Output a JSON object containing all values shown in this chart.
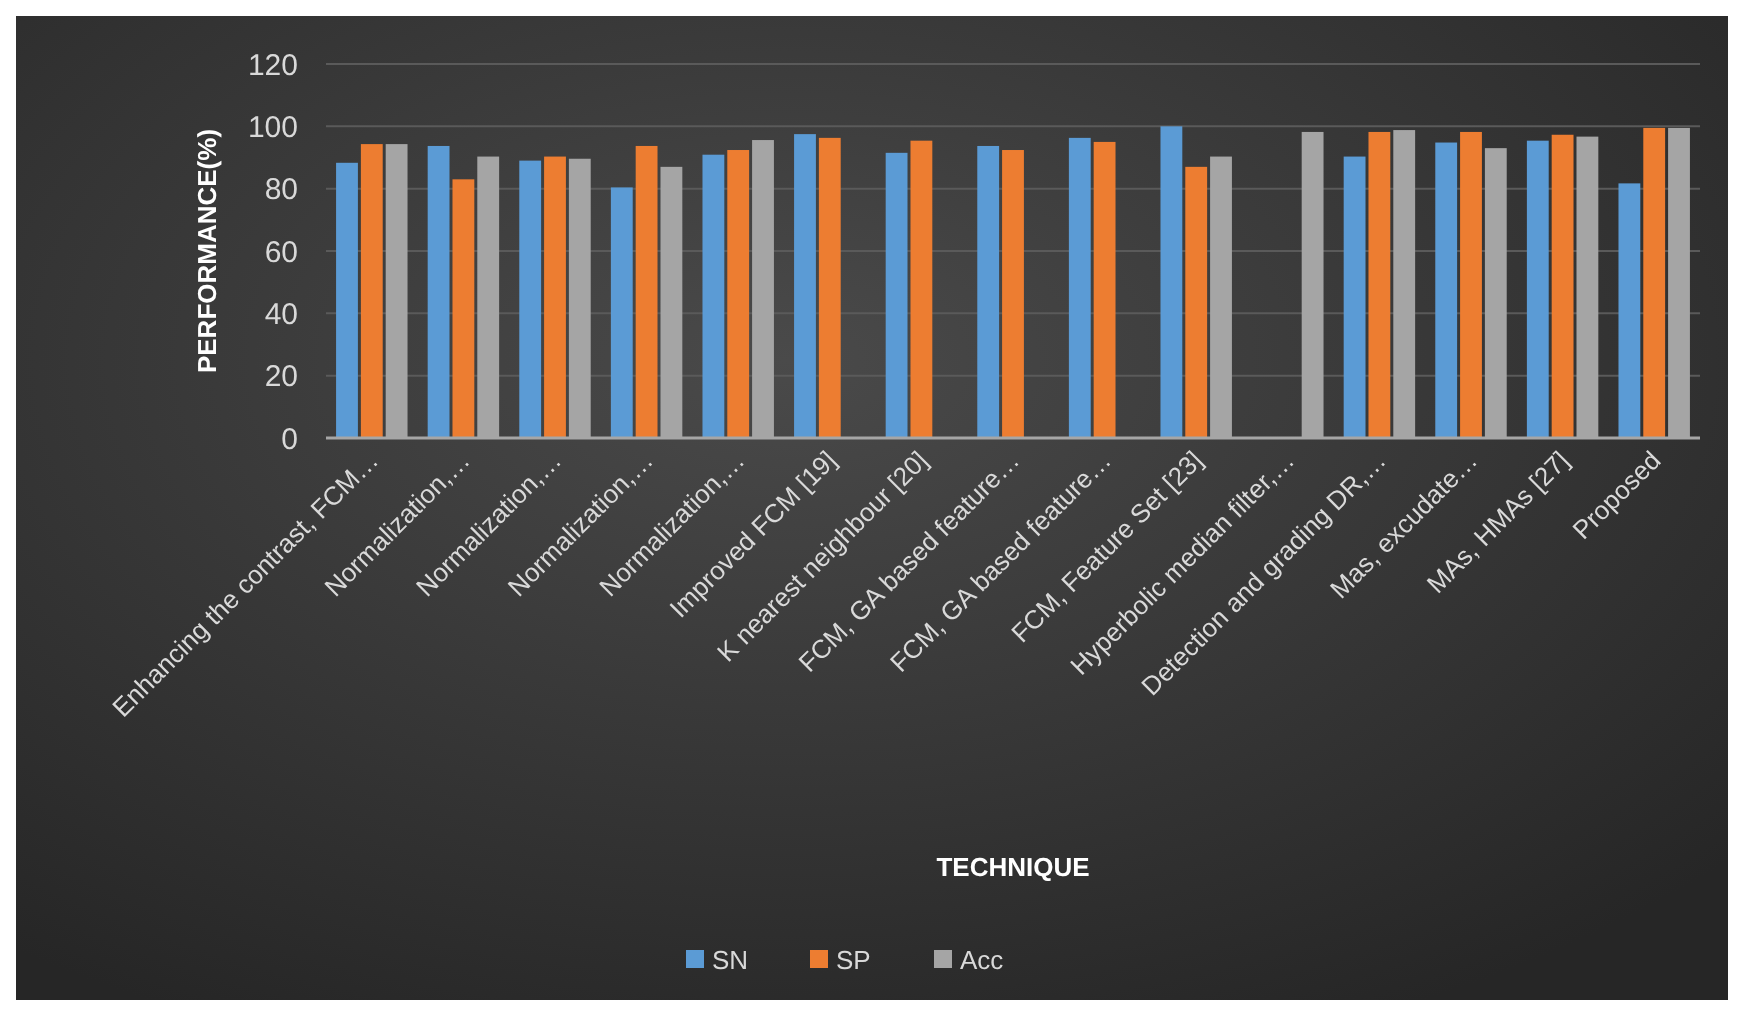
{
  "chart_data": {
    "type": "bar",
    "xlabel": "TECHNIQUE",
    "ylabel": "PERFORMANCE(%)",
    "categories": [
      "Enhancing the contrast, FCM…",
      "Normalization,…",
      "Normalization,…",
      "Normalization,…",
      "Normalization,…",
      "Improved FCM [19]",
      "K nearest neighbour [20]",
      "FCM, GA based feature…",
      "FCM, GA based feature…",
      "FCM, Feature Set [23]",
      "Hyperbolic median filter,…",
      "Detection and grading DR,…",
      "Mas, excudate…",
      "MAs, HMAs [27]",
      "Proposed"
    ],
    "series": [
      {
        "name": "SN",
        "color": "#5b9bd5",
        "values": [
          88.3,
          93.7,
          89,
          80.4,
          90.9,
          97.5,
          91.5,
          93.7,
          96.3,
          100,
          null,
          90.3,
          94.8,
          95.4,
          81.7
        ]
      },
      {
        "name": "SP",
        "color": "#ed7d31",
        "values": [
          94.3,
          83,
          90.3,
          93.7,
          92.4,
          96.3,
          95.4,
          92.4,
          95,
          87,
          null,
          98.2,
          98.2,
          97.3,
          99.5
        ]
      },
      {
        "name": "Acc",
        "color": "#a5a5a5",
        "values": [
          94.3,
          90.3,
          89.6,
          87,
          95.6,
          null,
          null,
          null,
          null,
          90.3,
          98.2,
          98.8,
          93,
          96.7,
          99.5
        ]
      }
    ],
    "ylim": [
      0,
      120
    ],
    "yticks": [
      0,
      20,
      40,
      60,
      80,
      100,
      120
    ],
    "grid": "y",
    "legend": "bottom"
  }
}
